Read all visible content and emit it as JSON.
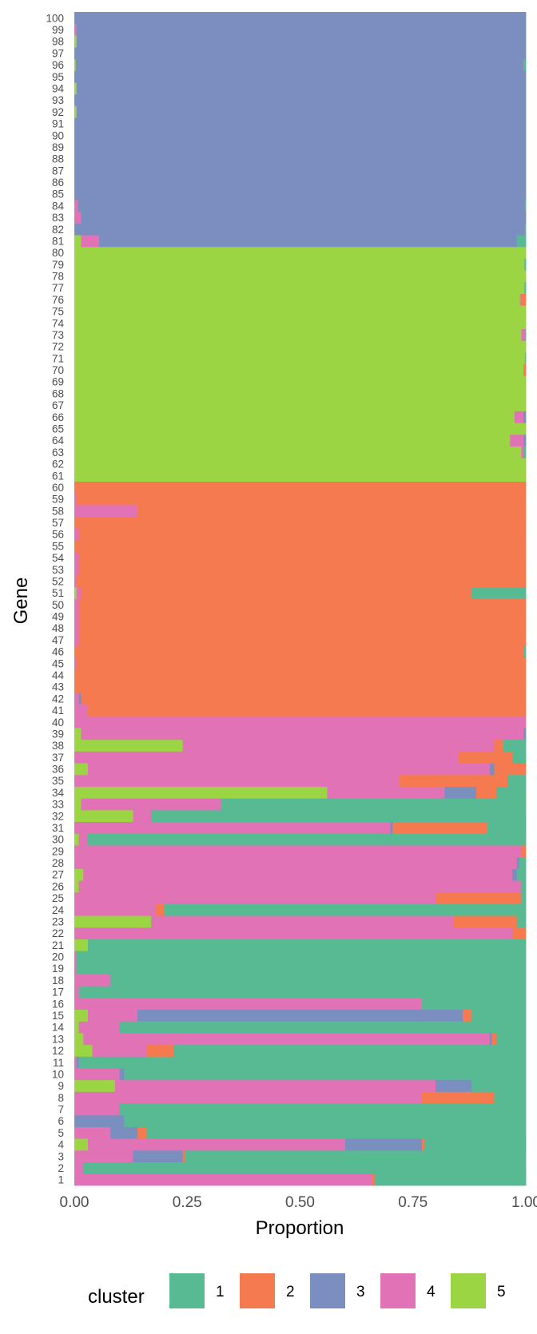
{
  "chart_data": {
    "type": "bar",
    "orientation": "horizontal",
    "stacked": true,
    "xlabel": "Proportion",
    "ylabel": "Gene",
    "xlim": [
      0,
      1
    ],
    "x_ticks": [
      "0.00",
      "0.25",
      "0.50",
      "0.75",
      "1.00"
    ],
    "grid": false,
    "legend": {
      "title": "cluster",
      "placement": "bottom",
      "labels": [
        "1",
        "2",
        "3",
        "4",
        "5"
      ]
    },
    "colors": {
      "1": "#58BA93",
      "2": "#F67A50",
      "3": "#7B8EC0",
      "4": "#E172B6",
      "5": "#9BD544"
    },
    "genes": [
      "1",
      "2",
      "3",
      "4",
      "5",
      "6",
      "7",
      "8",
      "9",
      "10",
      "11",
      "12",
      "13",
      "14",
      "15",
      "16",
      "17",
      "18",
      "19",
      "20",
      "21",
      "22",
      "23",
      "24",
      "25",
      "26",
      "27",
      "28",
      "29",
      "30",
      "31",
      "32",
      "33",
      "34",
      "35",
      "36",
      "37",
      "38",
      "39",
      "40",
      "41",
      "42",
      "43",
      "44",
      "45",
      "46",
      "47",
      "48",
      "49",
      "50",
      "51",
      "52",
      "53",
      "54",
      "55",
      "56",
      "57",
      "58",
      "59",
      "60",
      "61",
      "62",
      "63",
      "64",
      "65",
      "66",
      "67",
      "68",
      "69",
      "70",
      "71",
      "72",
      "73",
      "74",
      "75",
      "76",
      "77",
      "78",
      "79",
      "80",
      "81",
      "82",
      "83",
      "84",
      "85",
      "86",
      "87",
      "88",
      "89",
      "90",
      "91",
      "92",
      "93",
      "94",
      "95",
      "96",
      "97",
      "98",
      "99",
      "100"
    ],
    "segment_order": [
      "5",
      "4",
      "3",
      "2",
      "1"
    ],
    "series": [
      {
        "name": "5",
        "values": [
          0.0,
          0.0,
          0.0,
          0.03,
          0.0,
          0.0,
          0.0,
          0.0,
          0.09,
          0.0,
          0.0,
          0.04,
          0.02,
          0.01,
          0.03,
          0.0,
          0.0,
          0.0,
          0.0,
          0.0,
          0.03,
          0.0,
          0.17,
          0.0,
          0.0,
          0.01,
          0.02,
          0.0,
          0.0,
          0.01,
          0.0,
          0.13,
          0.015,
          0.56,
          0.0,
          0.03,
          0.0,
          0.24,
          0.015,
          0.0,
          0.0,
          0.0,
          0.0,
          0.0,
          0.0,
          0.0,
          0.0,
          0.0,
          0.0,
          0.0,
          0.005,
          0.0,
          0.0,
          0.0,
          0.0,
          0.0,
          0.0,
          0.0,
          0.0,
          0.0,
          1.0,
          1.0,
          0.99,
          0.965,
          1.0,
          0.975,
          1.0,
          1.0,
          1.0,
          0.995,
          0.998,
          1.0,
          0.99,
          1.0,
          1.0,
          0.99,
          0.997,
          1.0,
          0.997,
          1.0,
          0.015,
          0.0,
          0.0,
          0.0,
          0.0,
          0.0,
          0.0,
          0.0,
          0.0,
          0.0,
          0.0,
          0.005,
          0.0,
          0.005,
          0.0,
          0.003,
          0.0,
          0.005,
          0.0,
          0.0
        ]
      },
      {
        "name": "4",
        "values": [
          0.66,
          0.02,
          0.13,
          0.57,
          0.08,
          0.0,
          0.1,
          0.77,
          0.71,
          0.1,
          0.005,
          0.12,
          0.9,
          0.09,
          0.11,
          0.77,
          0.01,
          0.08,
          0.005,
          0.005,
          0.0,
          0.97,
          0.67,
          0.18,
          0.8,
          0.98,
          0.95,
          0.98,
          0.99,
          0.02,
          0.7,
          0.04,
          0.31,
          0.26,
          0.72,
          0.89,
          0.85,
          0.69,
          0.98,
          1.0,
          0.03,
          0.01,
          0.0,
          0.0,
          0.005,
          0.0,
          0.01,
          0.01,
          0.01,
          0.01,
          0.01,
          0.005,
          0.01,
          0.01,
          0.0,
          0.01,
          0.0,
          0.14,
          0.005,
          0.0,
          0.0,
          0.0,
          0.005,
          0.03,
          0.0,
          0.02,
          0.0,
          0.0,
          0.0,
          0.0,
          0.0,
          0.0,
          0.008,
          0.0,
          0.0,
          0.003,
          0.0,
          0.0,
          0.0,
          0.0,
          0.04,
          0.0,
          0.015,
          0.008,
          0.0,
          0.0,
          0.0,
          0.0,
          0.0,
          0.0,
          0.0,
          0.0,
          0.0,
          0.0,
          0.0,
          0.0,
          0.0,
          0.0,
          0.005,
          0.0
        ]
      },
      {
        "name": "3",
        "values": [
          0.0,
          0.0,
          0.11,
          0.17,
          0.06,
          0.11,
          0.0,
          0.0,
          0.08,
          0.01,
          0.005,
          0.0,
          0.005,
          0.0,
          0.72,
          0.0,
          0.0,
          0.0,
          0.0,
          0.0,
          0.0,
          0.0,
          0.0,
          0.0,
          0.0,
          0.0,
          0.01,
          0.005,
          0.0,
          0.0,
          0.005,
          0.0,
          0.0,
          0.07,
          0.0,
          0.01,
          0.0,
          0.0,
          0.005,
          0.0,
          0.0,
          0.005,
          0.0,
          0.0,
          0.0,
          0.0,
          0.0,
          0.0,
          0.0,
          0.0,
          0.0,
          0.0,
          0.0,
          0.0,
          0.0,
          0.0,
          0.0,
          0.0,
          0.0,
          0.0,
          0.0,
          0.0,
          0.0,
          0.005,
          0.0,
          0.005,
          0.0,
          0.0,
          0.0,
          0.0,
          0.0,
          0.0,
          0.0,
          0.0,
          0.0,
          0.0,
          0.0,
          0.0,
          0.0,
          0.0,
          0.925,
          0.998,
          0.985,
          0.99,
          1.0,
          1.0,
          1.0,
          1.0,
          1.0,
          1.0,
          1.0,
          0.995,
          1.0,
          0.995,
          1.0,
          0.992,
          1.0,
          0.995,
          0.995,
          1.0
        ]
      },
      {
        "name": "2",
        "values": [
          0.005,
          0.0,
          0.005,
          0.005,
          0.02,
          0.0,
          0.0,
          0.16,
          0.0,
          0.0,
          0.0,
          0.06,
          0.01,
          0.0,
          0.02,
          0.0,
          0.0,
          0.0,
          0.0,
          0.0,
          0.0,
          0.03,
          0.14,
          0.02,
          0.19,
          0.0,
          0.0,
          0.0,
          0.01,
          0.0,
          0.21,
          0.0,
          0.0,
          0.045,
          0.24,
          0.07,
          0.12,
          0.02,
          0.0,
          0.0,
          0.97,
          0.985,
          1.0,
          1.0,
          0.995,
          0.995,
          0.99,
          0.99,
          0.99,
          0.99,
          0.865,
          0.995,
          0.99,
          0.99,
          1.0,
          0.99,
          1.0,
          0.86,
          0.995,
          1.0,
          0.0,
          0.0,
          0.0,
          0.0,
          0.0,
          0.0,
          0.0,
          0.0,
          0.0,
          0.005,
          0.0,
          0.0,
          0.0,
          0.0,
          0.0,
          0.01,
          0.0,
          0.0,
          0.0,
          0.0,
          0.0,
          0.0,
          0.0,
          0.0,
          0.0,
          0.0,
          0.0,
          0.0,
          0.0,
          0.0,
          0.0,
          0.0,
          0.0,
          0.0,
          0.0,
          0.0,
          0.0,
          0.0,
          0.0,
          0.0
        ]
      },
      {
        "name": "1",
        "values": [
          0.335,
          0.98,
          0.755,
          0.225,
          0.84,
          0.89,
          0.9,
          0.07,
          0.12,
          0.89,
          0.99,
          0.78,
          0.065,
          0.9,
          0.12,
          0.23,
          0.99,
          0.92,
          0.995,
          0.995,
          0.97,
          0.0,
          0.02,
          0.8,
          0.01,
          0.01,
          0.02,
          0.015,
          0.0,
          0.97,
          0.085,
          0.83,
          0.675,
          0.065,
          0.04,
          0.0,
          0.03,
          0.05,
          0.0,
          0.0,
          0.0,
          0.0,
          0.0,
          0.0,
          0.0,
          0.005,
          0.0,
          0.0,
          0.0,
          0.0,
          0.12,
          0.0,
          0.0,
          0.0,
          0.0,
          0.0,
          0.0,
          0.0,
          0.0,
          0.0,
          0.0,
          0.0,
          0.005,
          0.0,
          0.0,
          0.0,
          0.0,
          0.0,
          0.0,
          0.0,
          0.002,
          0.0,
          0.002,
          0.0,
          0.0,
          0.0,
          0.003,
          0.0,
          0.003,
          0.0,
          0.02,
          0.002,
          0.0,
          0.002,
          0.0,
          0.0,
          0.0,
          0.0,
          0.0,
          0.0,
          0.0,
          0.0,
          0.0,
          0.0,
          0.0,
          0.005,
          0.0,
          0.0,
          0.0,
          0.0
        ]
      }
    ]
  }
}
